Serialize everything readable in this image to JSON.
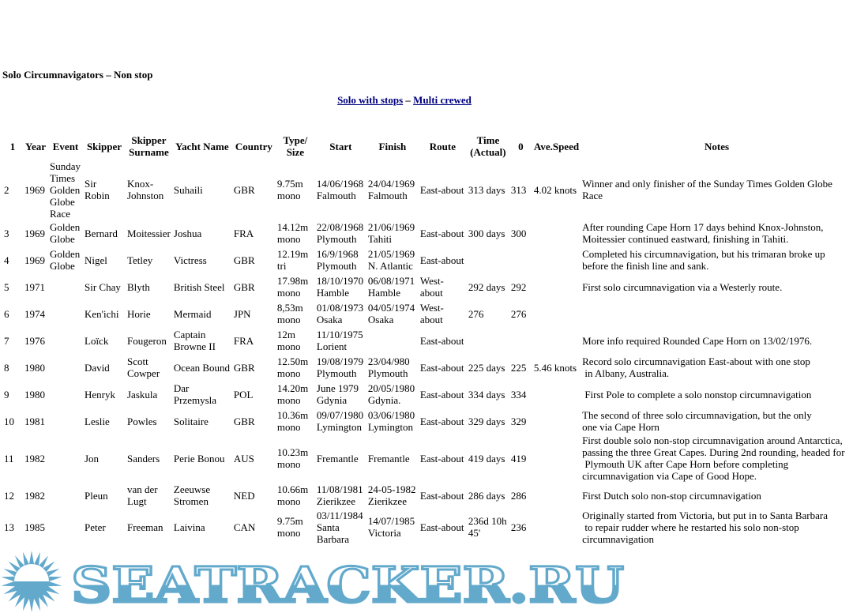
{
  "page_title": "Solo Circumnavigators – Non stop",
  "nav": {
    "link1": "Solo with stops",
    "sep": "–",
    "link2": "Multi crewed"
  },
  "table": {
    "headers": [
      "1",
      "Year",
      "Event",
      "Skipper",
      "Skipper Surname",
      "Yacht Name",
      "Country",
      "Type/ Size",
      "Start",
      "Finish",
      "Route",
      "Time (Actual)",
      "0",
      "Ave.Speed",
      "Notes"
    ],
    "rows": [
      [
        "2",
        "1969",
        "Sunday Times Golden Globe Race",
        "Sir Robin",
        "Knox-Johnston",
        "Suhaili",
        "GBR",
        "9.75m mono",
        "14/06/1968 Falmouth",
        "24/04/1969 Falmouth",
        "East-about",
        "313 days",
        "313",
        "4.02 knots",
        "Winner and only finisher of the Sunday Times Golden Globe Race"
      ],
      [
        "3",
        "1969",
        "Golden Globe",
        "Bernard",
        "Moitessier",
        "Joshua",
        "FRA",
        "14.12m mono",
        "22/08/1968 Plymouth",
        "21/06/1969 Tahiti",
        "East-about",
        "300 days",
        "300",
        "",
        "After rounding Cape Horn 17 days behind Knox-Johnston, Moitessier continued eastward, finishing in Tahiti."
      ],
      [
        "4",
        "1969",
        "Golden Globe",
        "Nigel",
        "Tetley",
        "Victress",
        "GBR",
        "12.19m tri",
        "16/9/1968 Plymouth",
        "21/05/1969 N. Atlantic",
        "East-about",
        "",
        "",
        "",
        "Completed his circumnavigation, but his trimaran broke up before the finish line and sank."
      ],
      [
        "5",
        "1971",
        "",
        "Sir Chay",
        "Blyth",
        "British Steel",
        "GBR",
        "17.98m mono",
        "18/10/1970 Hamble",
        "06/08/1971 Hamble",
        "West-about",
        "292 days",
        "292",
        "",
        "First solo circumnavigation via a Westerly route."
      ],
      [
        "6",
        "1974",
        "",
        "Ken'ichi",
        "Horie",
        "Mermaid",
        "JPN",
        "8,53m mono",
        "01/08/1973 Osaka",
        "04/05/1974 Osaka",
        "West-about",
        "276",
        "276",
        "",
        ""
      ],
      [
        "7",
        "1976",
        "",
        "Loïck",
        "Fougeron",
        "Captain Browne II",
        "FRA",
        "12m mono",
        "11/10/1975 Lorient",
        "",
        "East-about",
        "",
        "",
        "",
        "More info required Rounded Cape Horn on 13/02/1976."
      ],
      [
        "8",
        "1980",
        "",
        "David",
        "Scott Cowper",
        "Ocean Bound",
        "GBR",
        "12.50m mono",
        "19/08/1979 Plymouth",
        "23/04/980 Plymouth",
        "East-about",
        "225 days",
        "225",
        "5.46 knots",
        "Record solo circumnavigation East-about with one stop\n in Albany, Australia."
      ],
      [
        "9",
        "1980",
        "",
        "Henryk",
        "Jaskula",
        "Dar Przemysla",
        "POL",
        "14.20m mono",
        "June 1979 Gdynia",
        "20/05/1980 Gdynia.",
        "East-about",
        "334 days",
        "334",
        "",
        " First Pole to complete a solo nonstop circumnavigation"
      ],
      [
        "10",
        "1981",
        "",
        "Leslie",
        "Powles",
        "Solitaire",
        "GBR",
        "10.36m mono",
        "09/07/1980 Lymington",
        "03/06/1980 Lymington",
        "East-about",
        "329 days",
        "329",
        "",
        "The second of three solo circumnavigation, but the only\none via Cape Horn"
      ],
      [
        "11",
        "1982",
        "",
        "Jon",
        "Sanders",
        "Perie Bonou",
        "AUS",
        "10.23m mono",
        "Fremantle",
        "Fremantle",
        "East-about",
        "419 days",
        "419",
        "",
        "First double solo non-stop circumnavigation around Antarctica, passing the three Great Capes. During 2nd rounding, headed for\n Plymouth UK after Cape Horn before completing\ncircumnavigation via Cape of Good Hope."
      ],
      [
        "12",
        "1982",
        "",
        "Pleun",
        "van der Lugt",
        "Zeeuwse Stromen",
        "NED",
        "10.66m mono",
        "11/08/1981 Zierikzee",
        "24-05-1982 Zierikzee",
        "East-about",
        "286 days",
        "286",
        "",
        "First Dutch solo non-stop circumnavigation"
      ],
      [
        "13",
        "1985",
        "",
        "Peter",
        "Freeman",
        "Laivina",
        "CAN",
        "9.75m mono",
        "03/11/1984 Santa Barbara",
        "14/07/1985 Victoria",
        "East-about",
        "236d 10h 45'",
        "236",
        "",
        "Originally started from Victoria, but put in to Santa Barbara\n to repair rudder where he restarted his solo non-stop\ncircumnavigation"
      ]
    ]
  },
  "watermark": {
    "text": "SEATRACKER.RU",
    "color": "#62a9cc",
    "icon": "sun-icon"
  },
  "colors": {
    "link": "#000080"
  }
}
